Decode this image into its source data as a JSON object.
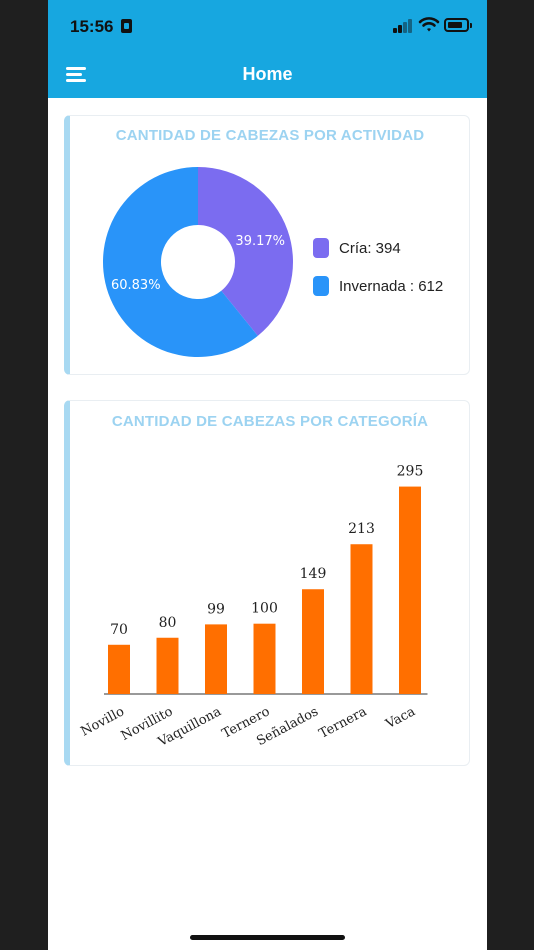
{
  "status_bar": {
    "time": "15:56"
  },
  "header": {
    "title": "Home"
  },
  "activity_card": {
    "title": "CANTIDAD DE CABEZAS POR ACTIVIDAD"
  },
  "category_card": {
    "title": "CANTIDAD DE CABEZAS POR CATEGORÍA"
  },
  "chart_data": [
    {
      "type": "pie",
      "donut": true,
      "title": "CANTIDAD DE CABEZAS POR ACTIVIDAD",
      "legend_position": "right",
      "slices": [
        {
          "label": "Cría: 394",
          "name": "Cría",
          "value": 394,
          "percent_label": "39.17%",
          "color": "#7b6cf0"
        },
        {
          "label": "Invernada : 612",
          "name": "Invernada",
          "value": 612,
          "percent_label": "60.83%",
          "color": "#2994f9"
        }
      ]
    },
    {
      "type": "bar",
      "title": "CANTIDAD DE CABEZAS POR CATEGORÍA",
      "categories": [
        "Novillo",
        "Novillito",
        "Vaquillona",
        "Ternero",
        "Señalados",
        "Ternera",
        "Vaca"
      ],
      "values": [
        70,
        80,
        99,
        100,
        149,
        213,
        295
      ],
      "ylim": [
        0,
        320
      ],
      "grid": false,
      "color": "#ff6f00"
    }
  ]
}
